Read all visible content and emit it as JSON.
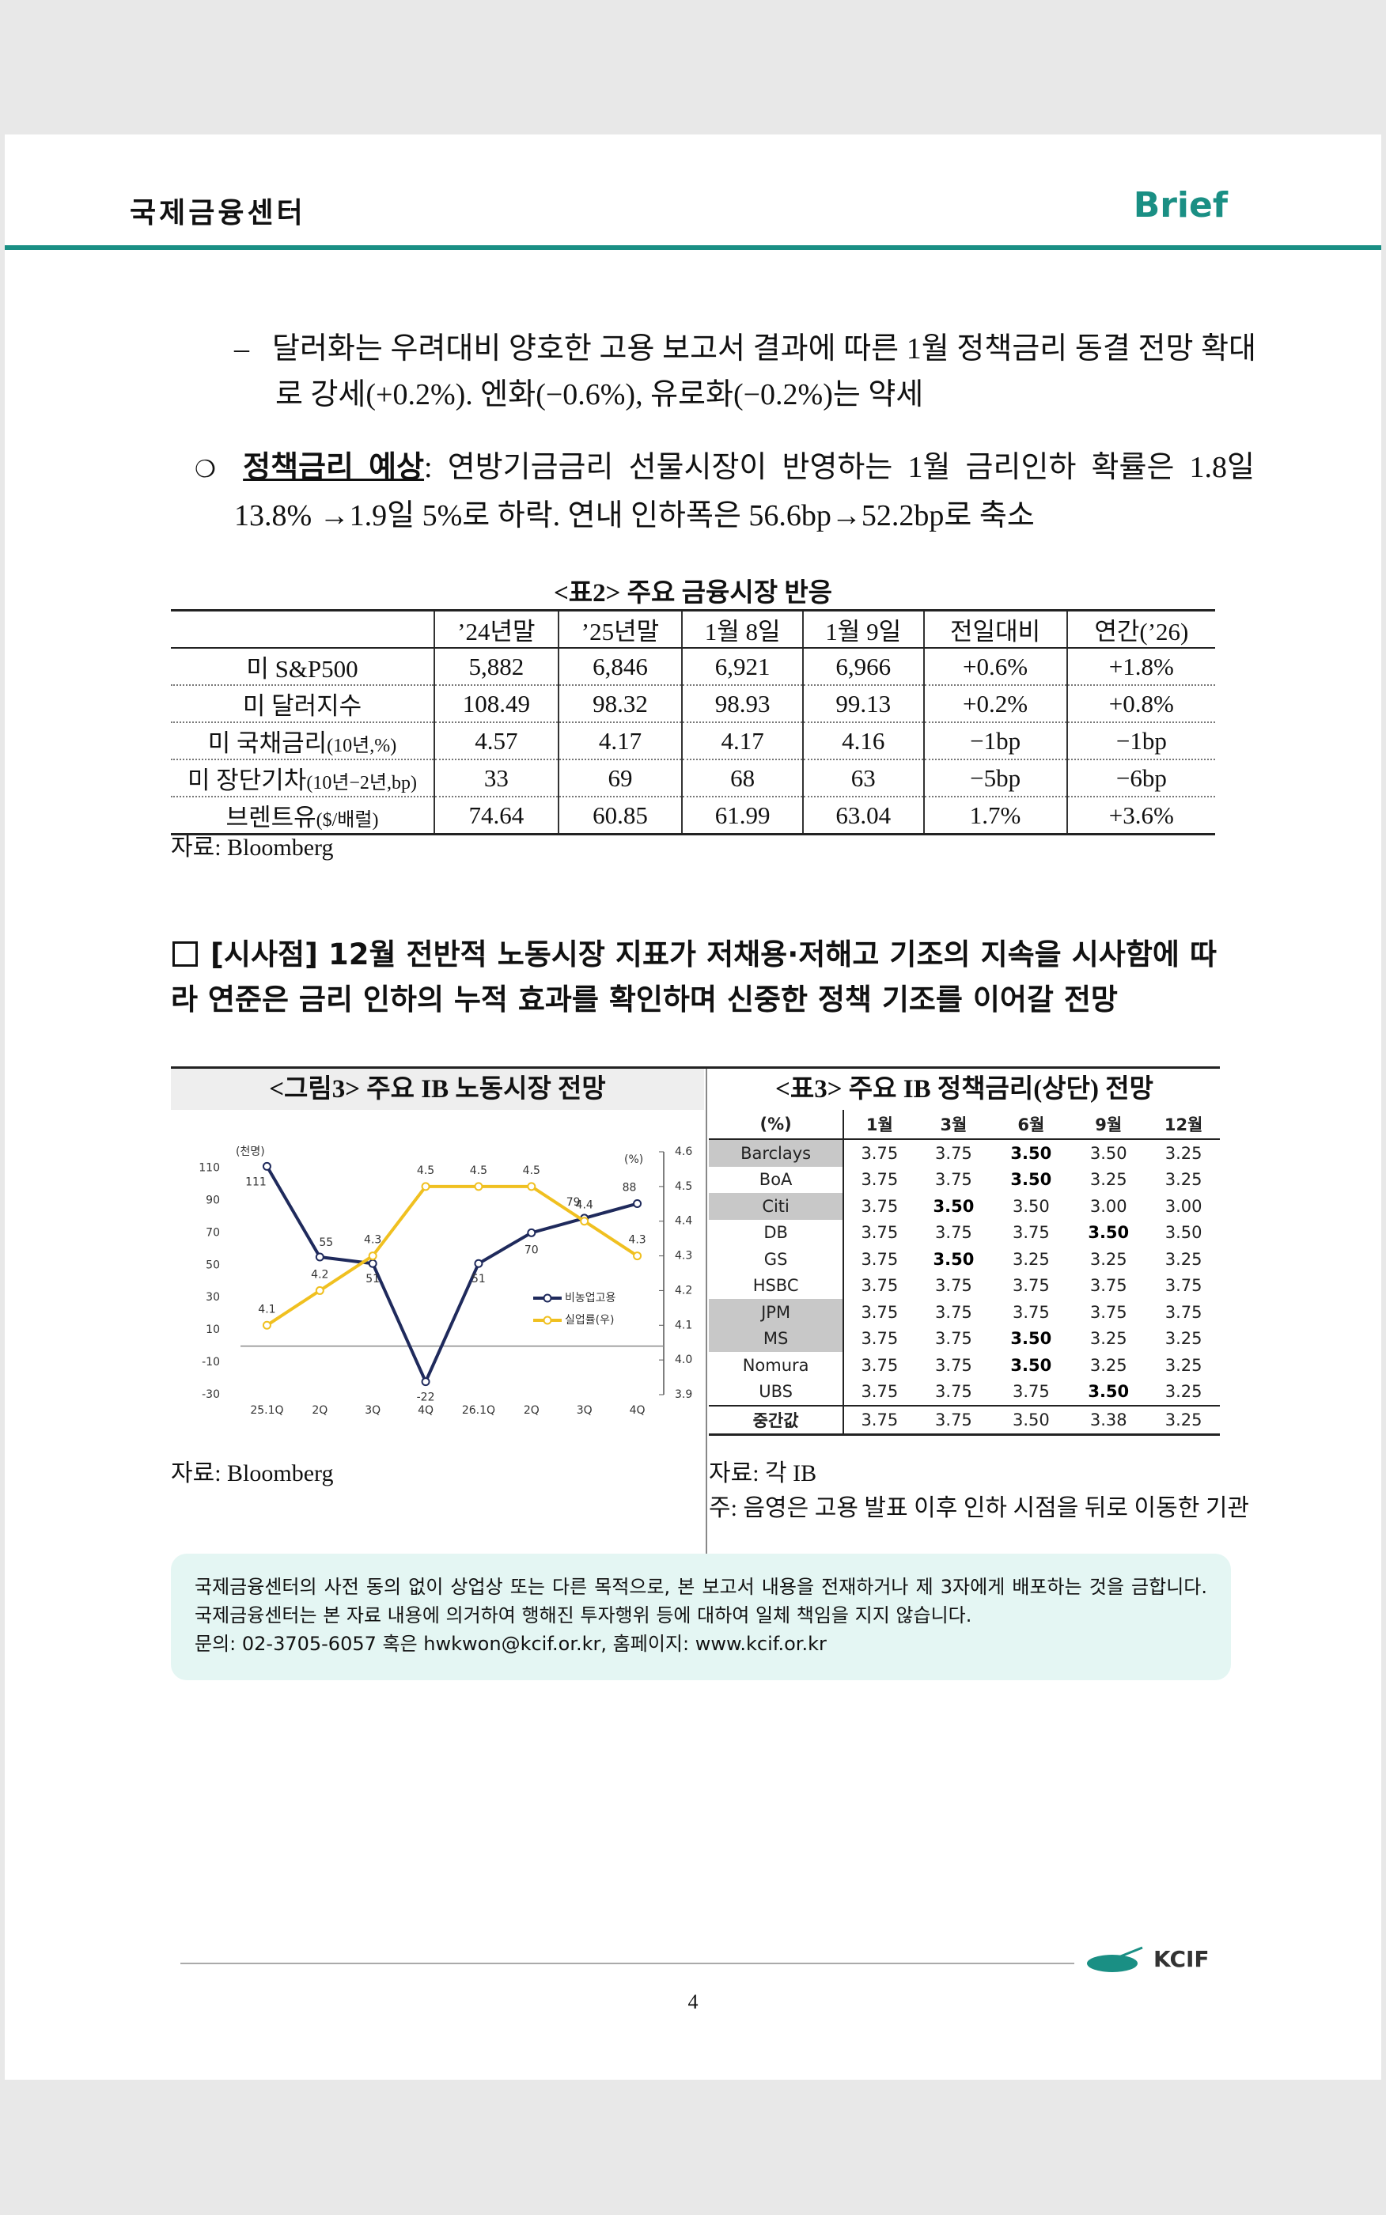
{
  "header": {
    "title": "국제금융센터",
    "brand": "Brief"
  },
  "body": {
    "dash_item": "달러화는 우려대비 양호한 고용 보고서 결과에 따른 1월 정책금리 동결 전망 확대로 강세(+0.2%). 엔화(−0.6%), 유로화(−0.2%)는 약세",
    "bullet": {
      "label": "정책금리 예상",
      "text": ": 연방기금금리 선물시장이 반영하는 1월 금리인하 확률은 1.8일 13.8% →1.9일 5%로 하락. 연내 인하폭은 56.6bp→52.2bp로 축소"
    }
  },
  "table2": {
    "title": "<표2> 주요 금융시장 반응",
    "columns": [
      "’24년말",
      "’25년말",
      "1월 8일",
      "1월 9일",
      "전일대비",
      "연간(’26)"
    ],
    "rows": [
      {
        "label": "미 S&P500",
        "cells": [
          "5,882",
          "6,846",
          "6,921",
          "6,966",
          "+0.6%",
          "+1.8%"
        ]
      },
      {
        "label": "미 달러지수",
        "cells": [
          "108.49",
          "98.32",
          "98.93",
          "99.13",
          "+0.2%",
          "+0.8%"
        ]
      },
      {
        "label": "미 국채금리",
        "unit": "(10년,%)",
        "cells": [
          "4.57",
          "4.17",
          "4.17",
          "4.16",
          "−1bp",
          "−1bp"
        ]
      },
      {
        "label": "미 장단기차",
        "unit": "(10년−2년,bp)",
        "cells": [
          "33",
          "69",
          "68",
          "63",
          "−5bp",
          "−6bp"
        ]
      },
      {
        "label": "브렌트유",
        "unit": "($/배럴)",
        "cells": [
          "74.64",
          "60.85",
          "61.99",
          "63.04",
          "1.7%",
          "+3.6%"
        ]
      }
    ],
    "source": "자료: Bloomberg"
  },
  "section": {
    "text": "[시사점] 12월 전반적 노동시장 지표가 저채용·저해고 기조의 지속을 시사함에 따라 연준은 금리 인하의 누적 효과를 확인하며 신중한 정책 기조를 이어갈 전망"
  },
  "chart_data": {
    "type": "line",
    "title": "<그림3> 주요 IB 노동시장 전망",
    "categories": [
      "25.1Q",
      "2Q",
      "3Q",
      "4Q",
      "26.1Q",
      "2Q",
      "3Q",
      "4Q"
    ],
    "series": [
      {
        "name": "비농업고용",
        "color": "#1f2a5c",
        "values": [
          111,
          55,
          51,
          -22,
          51,
          70,
          79,
          88
        ]
      },
      {
        "name": "실업률(우)",
        "color": "#f0c020",
        "axis": "y2",
        "values": [
          4.1,
          4.2,
          4.3,
          4.5,
          4.5,
          4.5,
          4.4,
          4.3
        ]
      }
    ],
    "y_label": "(천명)",
    "y2_label": "(%)",
    "ylim": [
      -30,
      120
    ],
    "yticks": [
      -30,
      -10,
      10,
      30,
      50,
      70,
      90,
      110
    ],
    "y2lim": [
      3.9,
      4.6
    ],
    "y2ticks": [
      3.9,
      {
        "value": 4,
        "label": "4.0"
      },
      4.1,
      4.2,
      4.3,
      4.4,
      4.5,
      4.6
    ],
    "source": "자료: Bloomberg"
  },
  "table3": {
    "title": "<표3> 주요 IB 정책금리(상단) 전망",
    "columns": [
      "(%)",
      "1월",
      "3월",
      "6월",
      "9월",
      "12월"
    ],
    "rows": [
      {
        "name": "Barclays",
        "shaded": true,
        "bold": [
          2
        ],
        "cells": [
          "3.75",
          "3.75",
          "3.50",
          "3.50",
          "3.25"
        ]
      },
      {
        "name": "BoA",
        "shaded": false,
        "bold": [
          2
        ],
        "cells": [
          "3.75",
          "3.75",
          "3.50",
          "3.25",
          "3.25"
        ]
      },
      {
        "name": "Citi",
        "shaded": true,
        "bold": [
          1
        ],
        "cells": [
          "3.75",
          "3.50",
          "3.50",
          "3.00",
          "3.00"
        ]
      },
      {
        "name": "DB",
        "shaded": false,
        "bold": [
          3
        ],
        "cells": [
          "3.75",
          "3.75",
          "3.75",
          "3.50",
          "3.50"
        ]
      },
      {
        "name": "GS",
        "shaded": false,
        "bold": [
          1
        ],
        "cells": [
          "3.75",
          "3.50",
          "3.25",
          "3.25",
          "3.25"
        ]
      },
      {
        "name": "HSBC",
        "shaded": false,
        "bold": [],
        "cells": [
          "3.75",
          "3.75",
          "3.75",
          "3.75",
          "3.75"
        ]
      },
      {
        "name": "JPM",
        "shaded": true,
        "bold": [],
        "cells": [
          "3.75",
          "3.75",
          "3.75",
          "3.75",
          "3.75"
        ]
      },
      {
        "name": "MS",
        "shaded": true,
        "bold": [
          2
        ],
        "cells": [
          "3.75",
          "3.75",
          "3.50",
          "3.25",
          "3.25"
        ]
      },
      {
        "name": "Nomura",
        "shaded": false,
        "bold": [
          2
        ],
        "cells": [
          "3.75",
          "3.75",
          "3.50",
          "3.25",
          "3.25"
        ]
      },
      {
        "name": "UBS",
        "shaded": false,
        "bold": [
          3
        ],
        "cells": [
          "3.75",
          "3.75",
          "3.75",
          "3.50",
          "3.25"
        ]
      }
    ],
    "median": {
      "name": "중간값",
      "cells": [
        "3.75",
        "3.75",
        "3.50",
        "3.38",
        "3.25"
      ]
    },
    "source": "자료: 각 IB",
    "note": "주: 음영은 고용 발표 이후 인하 시점을 뒤로 이동한 기관"
  },
  "notice": {
    "lines": [
      "국제금융센터의 사전 동의 없이 상업상 또는 다른 목적으로, 본 보고서 내용을 전재하거나 제 3자에게 배포하는 것을 금합니다. 국제금융센터는 본 자료 내용에 의거하여 행해진 투자행위 등에 대하여 일체 책임을 지지 않습니다.",
      "문의: 02-3705-6057 혹은 hwkwon@kcif.or.kr, 홈페이지: www.kcif.or.kr"
    ]
  },
  "footer": {
    "logo": "KCIF",
    "page": "4"
  }
}
